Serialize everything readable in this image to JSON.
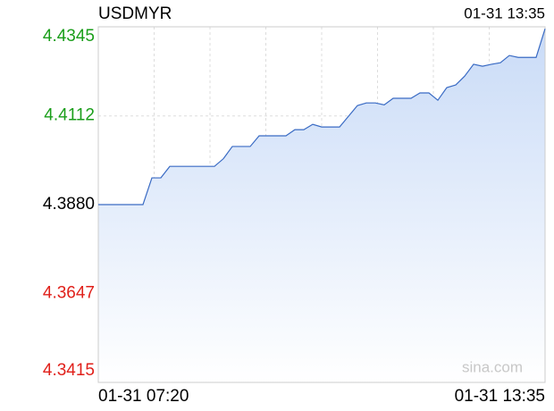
{
  "chart_data": {
    "type": "line",
    "title": "USDMYR",
    "timestamp": "01-31 13:35",
    "watermark": "sina.com",
    "categories": [
      "01-31 07:20",
      null,
      null,
      null,
      null,
      null,
      null,
      null,
      null,
      null,
      null,
      null,
      null,
      null,
      null,
      null,
      null,
      null,
      null,
      null,
      null,
      null,
      null,
      null,
      null,
      null,
      null,
      null,
      null,
      null,
      null,
      null,
      null,
      null,
      null,
      null,
      null,
      null,
      null,
      null,
      null,
      null,
      null,
      null,
      null,
      null,
      null,
      null,
      null,
      null,
      "01-31 13:35"
    ],
    "series": [
      {
        "name": "USDMYR",
        "color": "#3a6bc4",
        "values": [
          4.388,
          4.388,
          4.388,
          4.388,
          4.388,
          4.388,
          4.395,
          4.395,
          4.398,
          4.398,
          4.398,
          4.398,
          4.398,
          4.398,
          4.4,
          4.4032,
          4.4032,
          4.4032,
          4.406,
          4.406,
          4.406,
          4.406,
          4.4076,
          4.4076,
          4.409,
          4.4083,
          4.4083,
          4.4083,
          4.4111,
          4.4139,
          4.4146,
          4.4146,
          4.4141,
          4.4158,
          4.4158,
          4.4158,
          4.4172,
          4.4172,
          4.4153,
          4.4186,
          4.4193,
          4.4216,
          4.4247,
          4.4242,
          4.4247,
          4.4251,
          4.427,
          4.4265,
          4.4265,
          4.4265,
          4.434
        ]
      }
    ],
    "ylim": [
      4.3415,
      4.4345
    ],
    "yticks": [
      4.3415,
      4.3647,
      {
        "value": 4.388,
        "label": "4.3880"
      },
      4.4112,
      4.4345
    ],
    "up_color": "#1a9e1a",
    "down_color": "#e0201a",
    "grid": true
  }
}
